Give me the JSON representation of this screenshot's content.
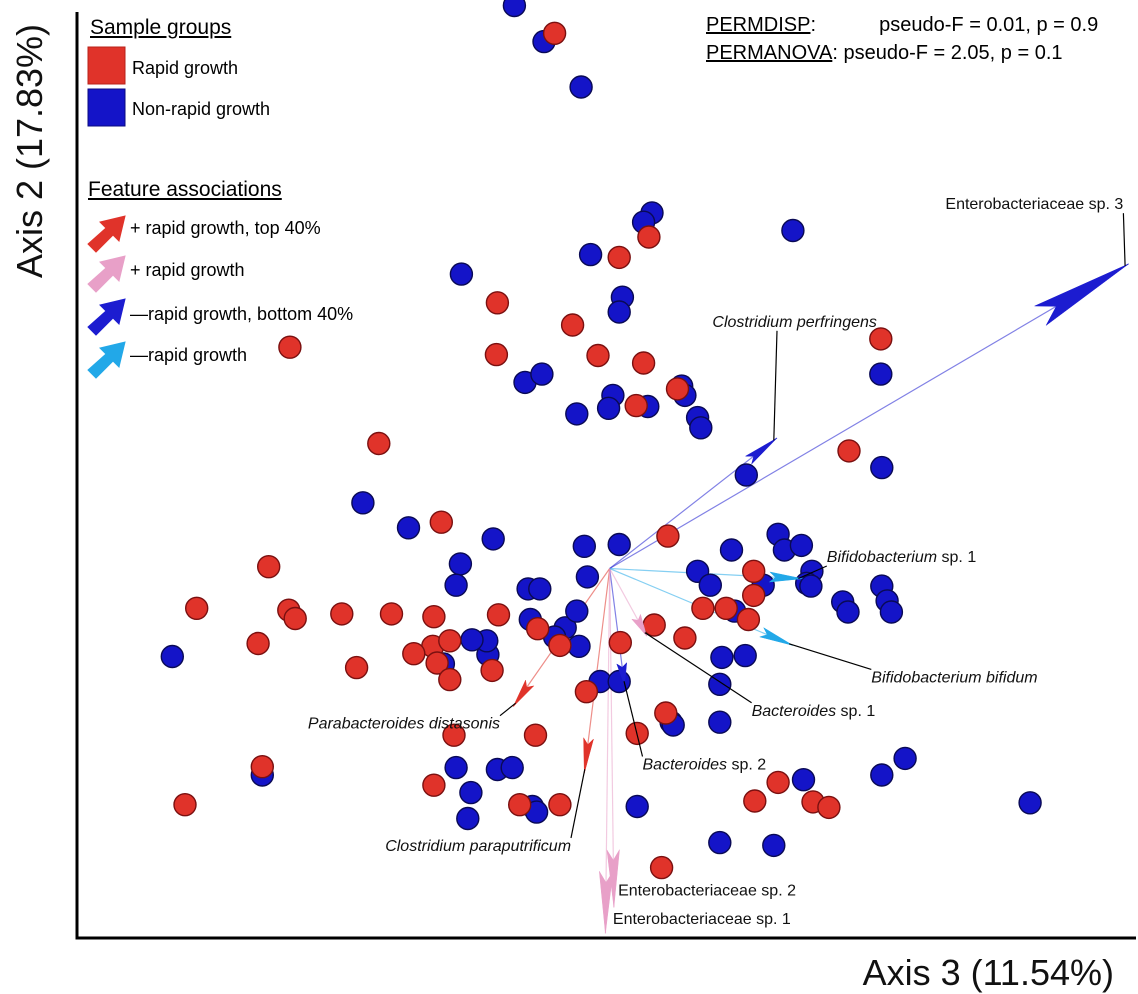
{
  "chart_data": {
    "type": "scatter",
    "xlabel": "Axis 3 (11.54%)",
    "ylabel": "Axis 2 (17.83%)",
    "xlim": [
      0,
      100
    ],
    "ylim": [
      0,
      100
    ],
    "grid": false,
    "legend_position": "top-left",
    "legend": {
      "groups_title": "Sample groups",
      "groups": [
        {
          "label": "Rapid growth",
          "color": "#e0332a"
        },
        {
          "label": "Non-rapid growth",
          "color": "#1414c8"
        }
      ],
      "features_title": "Feature associations",
      "features": [
        {
          "label": "+ rapid growth, top 40%",
          "color": "#e0332a"
        },
        {
          "label": "+ rapid growth",
          "color": "#e8a0c8"
        },
        {
          "label": "—rapid growth, bottom 40%",
          "color": "#1c1cd0"
        },
        {
          "label": "—rapid growth",
          "color": "#22a8e8"
        }
      ]
    },
    "stats": [
      {
        "name": "PERMDISP",
        "f_label": "pseudo-F = 0.01,",
        "p_label": "p = 0.9"
      },
      {
        "name": "PERMANOVA",
        "f_label": "pseudo-F = 2.05,",
        "p_label": "p = 0.1"
      }
    ],
    "series": [
      {
        "name": "Rapid growth",
        "color": "#e0332a",
        "points": [
          [
            45.1,
            97.7
          ],
          [
            54.0,
            75.7
          ],
          [
            51.2,
            73.5
          ],
          [
            39.7,
            68.6
          ],
          [
            46.8,
            66.2
          ],
          [
            49.2,
            62.9
          ],
          [
            20.1,
            63.8
          ],
          [
            39.6,
            63.0
          ],
          [
            53.5,
            62.1
          ],
          [
            56.7,
            59.3
          ],
          [
            52.8,
            57.5
          ],
          [
            28.5,
            53.4
          ],
          [
            72.9,
            52.6
          ],
          [
            34.4,
            44.9
          ],
          [
            55.8,
            43.4
          ],
          [
            18.1,
            40.1
          ],
          [
            11.3,
            35.6
          ],
          [
            20.0,
            35.4
          ],
          [
            20.6,
            34.5
          ],
          [
            25.0,
            35.0
          ],
          [
            29.7,
            35.0
          ],
          [
            33.7,
            34.7
          ],
          [
            39.8,
            34.9
          ],
          [
            17.1,
            31.8
          ],
          [
            26.4,
            29.2
          ],
          [
            33.6,
            31.5
          ],
          [
            31.8,
            30.7
          ],
          [
            35.2,
            32.1
          ],
          [
            34.0,
            29.7
          ],
          [
            39.2,
            28.9
          ],
          [
            43.5,
            33.4
          ],
          [
            45.6,
            31.6
          ],
          [
            51.3,
            31.9
          ],
          [
            54.5,
            33.8
          ],
          [
            57.4,
            32.4
          ],
          [
            59.1,
            35.6
          ],
          [
            61.3,
            35.6
          ],
          [
            63.4,
            34.4
          ],
          [
            63.9,
            37.0
          ],
          [
            63.9,
            39.6
          ],
          [
            35.2,
            27.9
          ],
          [
            48.1,
            26.6
          ],
          [
            43.3,
            21.9
          ],
          [
            35.6,
            21.9
          ],
          [
            17.5,
            18.5
          ],
          [
            10.2,
            14.4
          ],
          [
            33.7,
            16.5
          ],
          [
            41.8,
            14.4
          ],
          [
            45.6,
            14.4
          ],
          [
            55.6,
            24.3
          ],
          [
            52.9,
            22.1
          ],
          [
            55.2,
            7.6
          ],
          [
            64.0,
            14.8
          ],
          [
            66.2,
            16.8
          ],
          [
            69.5,
            14.7
          ],
          [
            71.0,
            14.1
          ],
          [
            75.9,
            64.7
          ]
        ]
      },
      {
        "name": "Non-rapid growth",
        "color": "#1414c8",
        "points": [
          [
            41.3,
            100.7
          ],
          [
            44.1,
            96.8
          ],
          [
            47.6,
            91.9
          ],
          [
            54.3,
            78.3
          ],
          [
            53.5,
            77.3
          ],
          [
            48.5,
            73.8
          ],
          [
            67.6,
            76.4
          ],
          [
            36.3,
            71.7
          ],
          [
            51.5,
            69.2
          ],
          [
            51.2,
            67.6
          ],
          [
            42.3,
            60.0
          ],
          [
            43.9,
            60.9
          ],
          [
            57.1,
            59.6
          ],
          [
            57.4,
            58.6
          ],
          [
            50.6,
            58.6
          ],
          [
            50.2,
            57.2
          ],
          [
            47.2,
            56.6
          ],
          [
            53.9,
            57.4
          ],
          [
            58.6,
            56.2
          ],
          [
            58.9,
            55.1
          ],
          [
            75.9,
            60.9
          ],
          [
            76.0,
            50.8
          ],
          [
            63.2,
            50.0
          ],
          [
            27.0,
            47.0
          ],
          [
            31.3,
            44.3
          ],
          [
            39.3,
            43.1
          ],
          [
            47.9,
            42.3
          ],
          [
            51.2,
            42.5
          ],
          [
            36.2,
            40.4
          ],
          [
            48.2,
            39.0
          ],
          [
            58.6,
            39.6
          ],
          [
            61.8,
            41.9
          ],
          [
            66.2,
            43.6
          ],
          [
            66.8,
            41.9
          ],
          [
            68.4,
            42.4
          ],
          [
            69.4,
            39.6
          ],
          [
            68.9,
            38.3
          ],
          [
            64.8,
            38.1
          ],
          [
            69.3,
            38.0
          ],
          [
            72.3,
            36.3
          ],
          [
            72.8,
            35.2
          ],
          [
            76.0,
            38.0
          ],
          [
            76.5,
            36.4
          ],
          [
            76.9,
            35.2
          ],
          [
            35.8,
            38.1
          ],
          [
            42.6,
            37.7
          ],
          [
            43.7,
            37.7
          ],
          [
            42.8,
            34.4
          ],
          [
            46.1,
            33.5
          ],
          [
            47.2,
            35.3
          ],
          [
            45.1,
            32.5
          ],
          [
            47.4,
            31.5
          ],
          [
            60.9,
            30.3
          ],
          [
            63.1,
            30.5
          ],
          [
            9.0,
            30.4
          ],
          [
            34.6,
            29.6
          ],
          [
            38.8,
            30.6
          ],
          [
            38.7,
            32.1
          ],
          [
            37.3,
            32.2
          ],
          [
            49.4,
            27.7
          ],
          [
            51.2,
            27.7
          ],
          [
            60.7,
            27.4
          ],
          [
            56.1,
            23.3
          ],
          [
            56.3,
            23.0
          ],
          [
            60.7,
            23.3
          ],
          [
            35.8,
            18.4
          ],
          [
            39.7,
            18.2
          ],
          [
            41.1,
            18.4
          ],
          [
            37.2,
            15.7
          ],
          [
            36.9,
            12.9
          ],
          [
            43.0,
            14.2
          ],
          [
            43.4,
            13.6
          ],
          [
            52.9,
            14.2
          ],
          [
            60.7,
            10.3
          ],
          [
            65.8,
            10.0
          ],
          [
            17.5,
            17.6
          ],
          [
            68.6,
            17.1
          ],
          [
            76.0,
            17.6
          ],
          [
            78.2,
            19.4
          ],
          [
            90.0,
            14.6
          ],
          [
            59.8,
            38.1
          ],
          [
            62.1,
            35.3
          ]
        ]
      }
    ],
    "origin": [
      50.3,
      39.9
    ],
    "arrows": [
      {
        "label": "Enterobacteriaceae sp. 3",
        "italic": false,
        "color": "#1c1cd0",
        "tip": [
          99.3,
          72.8
        ],
        "label_pos": [
          82.0,
          78.7
        ]
      },
      {
        "label": "Clostridium perfringens",
        "italic": true,
        "color": "#1c1cd0",
        "tip": [
          66.1,
          54.0
        ],
        "label_pos": [
          60.0,
          66.0
        ]
      },
      {
        "label": "Bifidobacterium sp. 1",
        "italic": false,
        "italic_part": "Bifidobacterium",
        "rest": " sp. 1",
        "color": "#22a8e8",
        "tip": [
          68.5,
          38.8
        ],
        "label_pos": [
          70.8,
          40.6
        ]
      },
      {
        "label": "Bifidobacterium bifidum",
        "italic": true,
        "color": "#22a8e8",
        "tip": [
          67.6,
          31.6
        ],
        "label_pos": [
          75.0,
          27.6
        ]
      },
      {
        "label": "Bacteroides sp. 1",
        "italic": false,
        "italic_part": "Bacteroides",
        "rest": " sp. 1",
        "color": "#e8a0c8",
        "tip": [
          53.8,
          32.6
        ],
        "label_pos": [
          63.7,
          24.0
        ]
      },
      {
        "label": "Bacteroides sp. 2",
        "italic": false,
        "italic_part": "Bacteroides",
        "rest": " sp. 2",
        "color": "#1c1cd0",
        "tip": [
          51.7,
          27.3
        ],
        "label_pos": [
          53.4,
          18.2
        ]
      },
      {
        "label": "Parabacteroides distasonis",
        "italic": true,
        "color": "#e0332a",
        "tip": [
          41.2,
          25.0
        ],
        "label_pos": [
          21.8,
          22.6
        ]
      },
      {
        "label": "Clostridium paraputrificum",
        "italic": true,
        "color": "#e0332a",
        "tip": [
          47.9,
          17.8
        ],
        "label_pos": [
          29.1,
          9.4
        ]
      },
      {
        "label": "Enterobacteriaceae sp. 2",
        "italic": false,
        "color": "#e8a0c8",
        "tip": [
          50.7,
          3.3
        ],
        "label_pos": [
          51.1,
          4.6
        ]
      },
      {
        "label": "Enterobacteriaceae sp. 1",
        "italic": false,
        "color": "#e8a0c8",
        "tip": [
          49.9,
          0.5
        ],
        "label_pos": [
          50.6,
          1.5
        ]
      }
    ]
  }
}
